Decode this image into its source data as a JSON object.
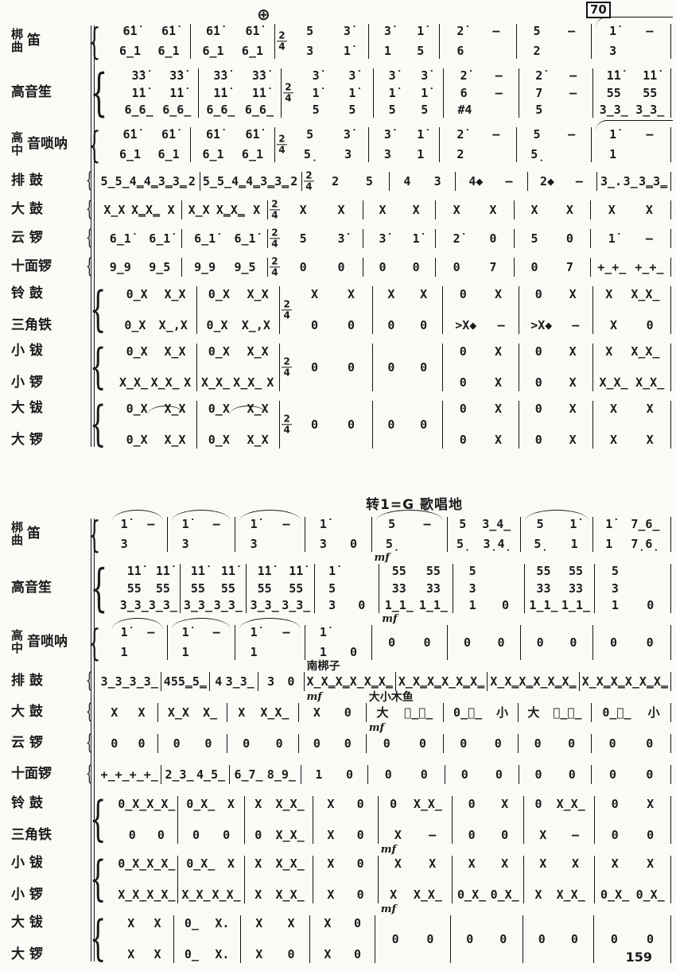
{
  "page": {
    "rehearsal_mark": "70",
    "coda_symbol": "⊕",
    "page_number": "159",
    "modulation_header": "转1=G  歌唱地"
  },
  "system1": {
    "blocks": [
      {
        "id": "bangdi-qudi",
        "label": {
          "stack": [
            "梆",
            "曲"
          ],
          "rest": "笛"
        },
        "type": "voices",
        "cells": [
          {
            "v": [
              "6̇1̇ 6̇1̇",
              "6̲1 6̲1"
            ]
          },
          {
            "v": [
              "6̇1̇ 6̇1̇",
              "6̲1 6̲1"
            ]
          },
          {
            "ts": "2/4",
            "v": [
              "5 3̇",
              "3 1̇"
            ]
          },
          {
            "v": [
              "3̇ 1̇",
              "1 5"
            ]
          },
          {
            "v": [
              "2̇ –",
              "6"
            ]
          },
          {
            "v": [
              "5 –",
              "2"
            ]
          },
          {
            "arc": "flat",
            "v": [
              "1̇ –",
              "3"
            ]
          }
        ]
      },
      {
        "id": "gaoyinsheng",
        "label": {
          "rest": "高音笙"
        },
        "type": "voices",
        "cells": [
          {
            "v": [
              "3̇3̇ 3̇3̇",
              "1̇1̇ 1̇1̇",
              "6̲6̲ 6̲6̲"
            ]
          },
          {
            "v": [
              "3̇3̇ 3̇3̇",
              "1̇1̇ 1̇1̇",
              "6̲6̲ 6̲6̲"
            ]
          },
          {
            "ts": "2/4",
            "v": [
              "3̇ 3̇",
              "1̇ 1̇",
              "5 5"
            ]
          },
          {
            "v": [
              "3̇ 3̇",
              "1̇ 1̇",
              "5 5"
            ]
          },
          {
            "v": [
              "2̇ –",
              "6 –",
              "#4"
            ]
          },
          {
            "v": [
              "2̇ –",
              "7 –",
              "5"
            ]
          },
          {
            "v": [
              "1̇1̇ 1̇1̇",
              "55 55",
              "3̲3̲ 3̲3̲"
            ]
          }
        ]
      },
      {
        "id": "gaoyin-suona",
        "label": {
          "stack": [
            "高",
            "中"
          ],
          "rest": "音唢呐"
        },
        "type": "voices",
        "cells": [
          {
            "v": [
              "6̇1̇ 6̇1̇",
              "6̲1 6̲1"
            ]
          },
          {
            "v": [
              "6̇1̇ 6̇1̇",
              "6̲1 6̲1"
            ]
          },
          {
            "ts": "2/4",
            "v": [
              "5 3̇",
              "5̣ 3"
            ]
          },
          {
            "v": [
              "3̇ 1̇",
              "3 1"
            ]
          },
          {
            "v": [
              "2̇ –",
              "2"
            ]
          },
          {
            "v": [
              "5 –",
              "5̣"
            ]
          },
          {
            "arc": "flat",
            "v": [
              "1̇ –",
              "1"
            ]
          }
        ]
      },
      {
        "id": "paigu",
        "label": {
          "rest": "排 鼓"
        },
        "type": "single",
        "cells": [
          {
            "t": "5̲5̲ 4̳4̳3̳3̳ 2"
          },
          {
            "t": "5̲5̲ 4̳4̳3̳3̳ 2"
          },
          {
            "ts": "2/4",
            "t": "2 5"
          },
          {
            "t": "4 3"
          },
          {
            "t": "4◆ –"
          },
          {
            "t": "2◆ –"
          },
          {
            "t": "3̲. 3̲ 3̳3̳"
          }
        ]
      },
      {
        "id": "dagu",
        "label": {
          "rest": "大 鼓"
        },
        "type": "single",
        "cells": [
          {
            "t": "X̲X X̳X̳ X"
          },
          {
            "t": "X̲X X̳X̳ X"
          },
          {
            "ts": "2/4",
            "t": "X X"
          },
          {
            "t": "X X"
          },
          {
            "t": "X X"
          },
          {
            "t": "X X"
          },
          {
            "t": "X X"
          }
        ]
      },
      {
        "id": "yunluo",
        "label": {
          "rest": "云 锣"
        },
        "type": "single",
        "cells": [
          {
            "t": "6̲1̇ 6̲1̇"
          },
          {
            "t": "6̲1̇ 6̲1̇"
          },
          {
            "ts": "2/4",
            "t": "5 3̇"
          },
          {
            "t": "3̇ 1̇"
          },
          {
            "t": "2̇ 0"
          },
          {
            "t": "5 0"
          },
          {
            "t": "1̇ –"
          }
        ]
      },
      {
        "id": "shimianluo",
        "label": {
          "rest": "十面锣"
        },
        "type": "single",
        "cells": [
          {
            "t": "9̲9 9̲5"
          },
          {
            "t": "9̲9 9̲5"
          },
          {
            "ts": "2/4",
            "t": "0 0"
          },
          {
            "t": "0 0"
          },
          {
            "t": "0 7"
          },
          {
            "t": "0 7"
          },
          {
            "t": "+̲+̲ +̲+̲"
          }
        ]
      },
      {
        "id": "linggu-sanjiaotie",
        "labels": [
          "铃 鼓",
          "三角铁"
        ],
        "type": "pair",
        "cells": [
          {
            "a": "0̲X X̲X",
            "b": "0̲X X̲,X"
          },
          {
            "a": "0̲X X̲X",
            "b": "0̲X X̲,X"
          },
          {
            "ts": "2/4",
            "a": "X X",
            "b": "0 0"
          },
          {
            "a": "X X",
            "b": "0 0"
          },
          {
            "a": "0 X",
            "b": ">X◆ –"
          },
          {
            "a": "0 X",
            "b": ">X◆ –"
          },
          {
            "a": "X X̲X̲",
            "b": "X 0"
          }
        ]
      },
      {
        "id": "xiaobo-xiaoluo",
        "labels": [
          "小 钹",
          "小 锣"
        ],
        "type": "pair",
        "cells": [
          {
            "a": "0̲X X̲X",
            "b": "X̲X̲ X̲X̲ X"
          },
          {
            "a": "0̲X X̲X",
            "b": "X̲X̲ X̲X̲ X"
          },
          {
            "ts": "2/4",
            "mid": "0 0"
          },
          {
            "mid": "0 0"
          },
          {
            "a": "0 X",
            "b": "0 X"
          },
          {
            "a": "0 X",
            "b": "0 X"
          },
          {
            "a": "X X̲X̲",
            "b": "X̲X̲ X̲X̲"
          }
        ]
      },
      {
        "id": "dabo-daluo",
        "labels": [
          "大 钹",
          "大 锣"
        ],
        "type": "pair",
        "cells": [
          {
            "a": "0̲X X̲X",
            "b": "0̲X X̲X",
            "arc_small": true
          },
          {
            "a": "0̲X X̲X",
            "b": "0̲X X̲X",
            "arc_small": true
          },
          {
            "ts": "2/4",
            "mid": "0 0"
          },
          {
            "mid": "0 0"
          },
          {
            "a": "0 X",
            "b": "0 X"
          },
          {
            "a": "0 X",
            "b": "0 X"
          },
          {
            "a": "X X",
            "b": "X X"
          }
        ]
      }
    ]
  },
  "system2": {
    "blocks": [
      {
        "id": "bangdi-qudi",
        "label": {
          "stack": [
            "梆",
            "曲"
          ],
          "rest": "笛"
        },
        "type": "voices",
        "cells": [
          {
            "arc": true,
            "v": [
              "1̇ –",
              "3"
            ]
          },
          {
            "arc": true,
            "v": [
              "1̇ –",
              "3"
            ]
          },
          {
            "arc": true,
            "v": [
              "1̇ –",
              "3"
            ]
          },
          {
            "v": [
              "1̇",
              "3 0"
            ]
          },
          {
            "arc": true,
            "dyn": "mf",
            "v": [
              "5 –",
              "5̣"
            ]
          },
          {
            "v": [
              "5 3̲4̲",
              "5̣ 3̣4̣"
            ]
          },
          {
            "arc": true,
            "v": [
              "5 1̇",
              "5̣ 1"
            ]
          },
          {
            "v": [
              "1̇ 7̲6̲",
              "1 7̣6̣"
            ]
          }
        ]
      },
      {
        "id": "gaoyinsheng",
        "label": {
          "rest": "高音笙"
        },
        "type": "voices",
        "cells": [
          {
            "v": [
              "1̇1̇ 1̇1̇",
              "55 55",
              "3̲3̲ 3̲3̲"
            ]
          },
          {
            "v": [
              "1̇1̇ 1̇1̇",
              "55 55",
              "3̲3̲ 3̲3̲"
            ]
          },
          {
            "v": [
              "1̇1̇ 1̇1̇",
              "55 55",
              "3̲3̲ 3̲3̲"
            ]
          },
          {
            "v": [
              "1̇",
              "5",
              "3 0"
            ]
          },
          {
            "dyn": "mf",
            "v": [
              "55 55",
              "33 33",
              "1̲1̲ 1̲1̲"
            ]
          },
          {
            "v": [
              "5",
              "3",
              "1 0"
            ]
          },
          {
            "v": [
              "55 55",
              "33 33",
              "1̲1̲ 1̲1̲"
            ]
          },
          {
            "v": [
              "5",
              "3",
              "1 0"
            ]
          }
        ]
      },
      {
        "id": "gaoyin-suona",
        "label": {
          "stack": [
            "高",
            "中"
          ],
          "rest": "音唢呐"
        },
        "type": "voices",
        "cells": [
          {
            "arc": true,
            "v": [
              "1̇ –",
              "1"
            ]
          },
          {
            "arc": true,
            "v": [
              "1̇ –",
              "1"
            ]
          },
          {
            "arc": true,
            "v": [
              "1̇ –",
              "1"
            ]
          },
          {
            "v": [
              "1̇",
              "1 0"
            ]
          },
          {
            "v": [
              "0 0"
            ]
          },
          {
            "v": [
              "0 0"
            ]
          },
          {
            "v": [
              "0 0"
            ]
          },
          {
            "v": [
              "0 0"
            ]
          }
        ]
      },
      {
        "id": "paigu",
        "label": {
          "rest": "排 鼓"
        },
        "type": "single",
        "cells": [
          {
            "t": "3̲3̲ 3̲3̲"
          },
          {
            "t": "45 5̳5̳"
          },
          {
            "t": "4 3̲3̲"
          },
          {
            "t": "3 0"
          },
          {
            "note": "南梆子",
            "dyn": "mf",
            "t": "X̲ X̳X̳ X̲ X̳X̳"
          },
          {
            "t": "X̲ X̳X̳ X̲ X̳X̳"
          },
          {
            "t": "X̲ X̳X̳ X̲ X̳X̳"
          },
          {
            "t": "X̲ X̳X̳ X̲ X̳X̳"
          }
        ]
      },
      {
        "id": "dagu",
        "label": {
          "rest": "大 鼓"
        },
        "type": "single",
        "cells": [
          {
            "t": "X X"
          },
          {
            "t": "X̲X X̲"
          },
          {
            "t": "X X̲X̲"
          },
          {
            "t": "X 0"
          },
          {
            "note": "大小木鱼",
            "dyn": "mf",
            "t": "大 小̲小̲"
          },
          {
            "t": "0̲大̲ 小"
          },
          {
            "t": "大 小̲小̲"
          },
          {
            "t": "0̲大̲ 小"
          }
        ]
      },
      {
        "id": "yunluo",
        "label": {
          "rest": "云 锣"
        },
        "type": "single",
        "cells": [
          {
            "t": "0 0"
          },
          {
            "t": "0 0"
          },
          {
            "t": "0 0"
          },
          {
            "t": "0 0"
          },
          {
            "t": "0 0"
          },
          {
            "t": "0 0"
          },
          {
            "t": "0 0"
          },
          {
            "t": "0 0"
          }
        ]
      },
      {
        "id": "shimianluo",
        "label": {
          "rest": "十面锣"
        },
        "type": "single",
        "cells": [
          {
            "t": "+̲+̲ +̲+̲"
          },
          {
            "t": "2̲3̲ 4̲5̲"
          },
          {
            "t": "6̲7̲ 8̲9̲"
          },
          {
            "t": "1 0"
          },
          {
            "t": "0 0"
          },
          {
            "t": "0 0"
          },
          {
            "t": "0 0"
          },
          {
            "t": "0 0"
          }
        ]
      },
      {
        "id": "linggu-sanjiaotie",
        "labels": [
          "铃 鼓",
          "三角铁"
        ],
        "type": "pair",
        "cells": [
          {
            "a": "0̲X̲ X̲X̲",
            "b": "0 0"
          },
          {
            "a": "0̲X̲ X",
            "b": "0 0"
          },
          {
            "a": "X X̲X̲",
            "b": "0 X̲X̲"
          },
          {
            "a": "X 0",
            "b": "X 0"
          },
          {
            "dyn": "mf",
            "a": "0 X̲X̲",
            "b": "X –"
          },
          {
            "a": "0 X",
            "b": "0 0"
          },
          {
            "a": "0 X̲X̲",
            "b": "X –"
          },
          {
            "a": "0 X",
            "b": "0 0"
          }
        ]
      },
      {
        "id": "xiaobo-xiaoluo",
        "labels": [
          "小 钹",
          "小 锣"
        ],
        "type": "pair",
        "cells": [
          {
            "a": "0̲X̲ X̲X̲",
            "b": "X̲X̲ X̲X̲"
          },
          {
            "a": "0̲X̲ X",
            "b": "X̲X̲ X̲X̲"
          },
          {
            "a": "X X̲X̲",
            "b": "X X̲X̲"
          },
          {
            "a": "X 0",
            "b": "X 0"
          },
          {
            "dyn": "mf",
            "a": "X X",
            "b": "X X̲X̲"
          },
          {
            "a": "X X",
            "b": "0̲X̲ 0̲X̲"
          },
          {
            "a": "X X",
            "b": "X X̲X̲"
          },
          {
            "a": "X X",
            "b": "0̲X̲ 0̲X̲"
          }
        ]
      },
      {
        "id": "dabo-daluo",
        "labels": [
          "大 钹",
          "大 锣"
        ],
        "type": "pair",
        "cells": [
          {
            "a": "X X",
            "b": "X X"
          },
          {
            "a": "0̲ X.",
            "b": "0̲ X."
          },
          {
            "a": "X X",
            "b": "X 0"
          },
          {
            "a": "X 0",
            "b": "X 0"
          },
          {
            "mid": "0 0"
          },
          {
            "mid": "0 0"
          },
          {
            "mid": "0 0"
          },
          {
            "mid": "0 0"
          }
        ]
      }
    ]
  }
}
